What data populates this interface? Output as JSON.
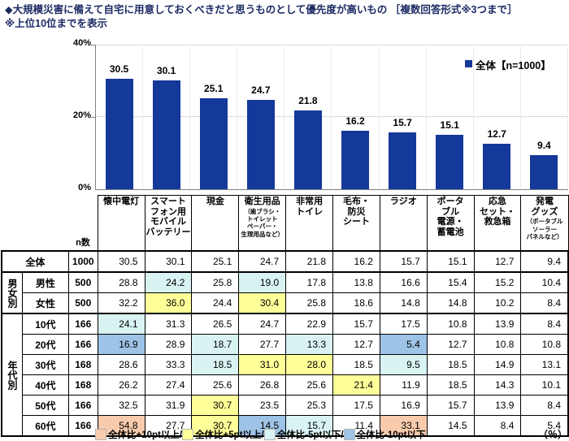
{
  "title": {
    "line1": "◆大規模災害に備えて自宅に用意しておくべきだと思うものとして優先度が高いもの ［複数回答形式※3つまで］",
    "line2": "※上位10位までを表示"
  },
  "chart_data": {
    "type": "bar",
    "title": "大規模災害に備えて自宅に用意しておくべきだと思うものとして優先度が高いもの",
    "categories": [
      "懐中電灯",
      "スマートフォン用モバイルバッテリー",
      "現金",
      "衛生用品（歯ブラシ・トイレットペーパー・生理用品など）",
      "非常用トイレ",
      "毛布・防災シート",
      "ラジオ",
      "ポータブル電源・蓄電池",
      "応急セット・救急箱",
      "発電グッズ（ポータブルソーラーパネルなど）"
    ],
    "values": [
      30.5,
      30.1,
      25.1,
      24.7,
      21.8,
      16.2,
      15.7,
      15.1,
      12.7,
      9.4
    ],
    "ylim": [
      0,
      40
    ],
    "yticks": [
      "40%",
      "20%",
      "0%"
    ],
    "grid": true,
    "legend": "全体【n=1000】",
    "legend_position": "top-right",
    "bar_color": "#15389B"
  },
  "table": {
    "n_header": "n数",
    "columns": [
      {
        "main": "懐中電灯",
        "sub": ""
      },
      {
        "main": "スマート\nフォン用\nモバイル\nバッテリー",
        "sub": ""
      },
      {
        "main": "現金",
        "sub": ""
      },
      {
        "main": "衛生用品",
        "sub": "（歯ブラシ・\nトイレット\nペーパー・\n生理用品など）"
      },
      {
        "main": "非常用\nトイレ",
        "sub": ""
      },
      {
        "main": "毛布・\n防災\nシート",
        "sub": ""
      },
      {
        "main": "ラジオ",
        "sub": ""
      },
      {
        "main": "ポータ\nブル\n電源・\n蓄電池",
        "sub": ""
      },
      {
        "main": "応急\nセット・\n救急箱",
        "sub": ""
      },
      {
        "main": "発電\nグッズ",
        "sub": "（ポータブル\nソーラー\nパネルなど）"
      }
    ],
    "rows": [
      {
        "group": null,
        "label": "全体",
        "n": "1000",
        "values": [
          "30.5",
          "30.1",
          "25.1",
          "24.7",
          "21.8",
          "16.2",
          "15.7",
          "15.1",
          "12.7",
          "9.4"
        ],
        "hl": [
          "",
          "",
          "",
          "",
          "",
          "",
          "",
          "",
          "",
          ""
        ],
        "group_start": false
      },
      {
        "group": {
          "label": "男女別",
          "span": 2
        },
        "label": "男性",
        "n": "500",
        "values": [
          "28.8",
          "24.2",
          "25.8",
          "19.0",
          "17.8",
          "13.8",
          "16.6",
          "15.4",
          "15.2",
          "10.4"
        ],
        "hl": [
          "",
          "m5",
          "",
          "m5",
          "",
          "",
          "",
          "",
          "",
          ""
        ],
        "group_start": true
      },
      {
        "group": null,
        "label": "女性",
        "n": "500",
        "values": [
          "32.2",
          "36.0",
          "24.4",
          "30.4",
          "25.8",
          "18.6",
          "14.8",
          "14.8",
          "10.2",
          "8.4"
        ],
        "hl": [
          "",
          "p5",
          "",
          "p5",
          "",
          "",
          "",
          "",
          "",
          ""
        ],
        "group_start": false
      },
      {
        "group": {
          "label": "年代別",
          "span": 6
        },
        "label": "10代",
        "n": "166",
        "values": [
          "24.1",
          "31.3",
          "26.5",
          "24.7",
          "22.9",
          "15.7",
          "17.5",
          "10.8",
          "13.9",
          "8.4"
        ],
        "hl": [
          "m5",
          "",
          "",
          "",
          "",
          "",
          "",
          "",
          "",
          ""
        ],
        "group_start": true
      },
      {
        "group": null,
        "label": "20代",
        "n": "166",
        "values": [
          "16.9",
          "28.9",
          "18.7",
          "27.7",
          "13.3",
          "12.7",
          "5.4",
          "12.7",
          "10.8",
          "10.8"
        ],
        "hl": [
          "m10",
          "",
          "m5",
          "",
          "m5",
          "",
          "m10",
          "",
          "",
          ""
        ],
        "group_start": false
      },
      {
        "group": null,
        "label": "30代",
        "n": "168",
        "values": [
          "28.6",
          "33.3",
          "18.5",
          "31.0",
          "28.0",
          "18.5",
          "9.5",
          "18.5",
          "14.9",
          "13.1"
        ],
        "hl": [
          "",
          "",
          "m5",
          "p5",
          "p5",
          "",
          "m5",
          "",
          "",
          ""
        ],
        "group_start": false
      },
      {
        "group": null,
        "label": "40代",
        "n": "168",
        "values": [
          "26.2",
          "27.4",
          "25.6",
          "26.8",
          "25.6",
          "21.4",
          "11.9",
          "18.5",
          "14.3",
          "10.1"
        ],
        "hl": [
          "",
          "",
          "",
          "",
          "",
          "p5",
          "",
          "",
          "",
          ""
        ],
        "group_start": false
      },
      {
        "group": null,
        "label": "50代",
        "n": "166",
        "values": [
          "32.5",
          "31.9",
          "30.7",
          "23.5",
          "25.3",
          "17.5",
          "16.9",
          "15.7",
          "13.9",
          "8.4"
        ],
        "hl": [
          "",
          "",
          "p5",
          "",
          "",
          "",
          "",
          "",
          "",
          ""
        ],
        "group_start": false
      },
      {
        "group": null,
        "label": "60代",
        "n": "166",
        "values": [
          "54.8",
          "27.7",
          "30.7",
          "14.5",
          "15.7",
          "11.4",
          "33.1",
          "14.5",
          "8.4",
          "5.4"
        ],
        "hl": [
          "p10",
          "",
          "p5",
          "m10",
          "m5",
          "",
          "p10",
          "",
          "",
          ""
        ],
        "group_start": false
      }
    ]
  },
  "highlight_colors": {
    "p10": "#F8CBAD",
    "p5": "#FFFF99",
    "m5": "#D9F3F3",
    "m10": "#9DC3E6"
  },
  "highlight_legend": [
    {
      "key": "p10",
      "label": "全体比+10pt以上/"
    },
    {
      "key": "p5",
      "label": "全体比+5pt以上/"
    },
    {
      "key": "m5",
      "label": "全体比-5pt以下/"
    },
    {
      "key": "m10",
      "label": "全体比-10pt以下"
    }
  ],
  "percent_note": "（％）"
}
